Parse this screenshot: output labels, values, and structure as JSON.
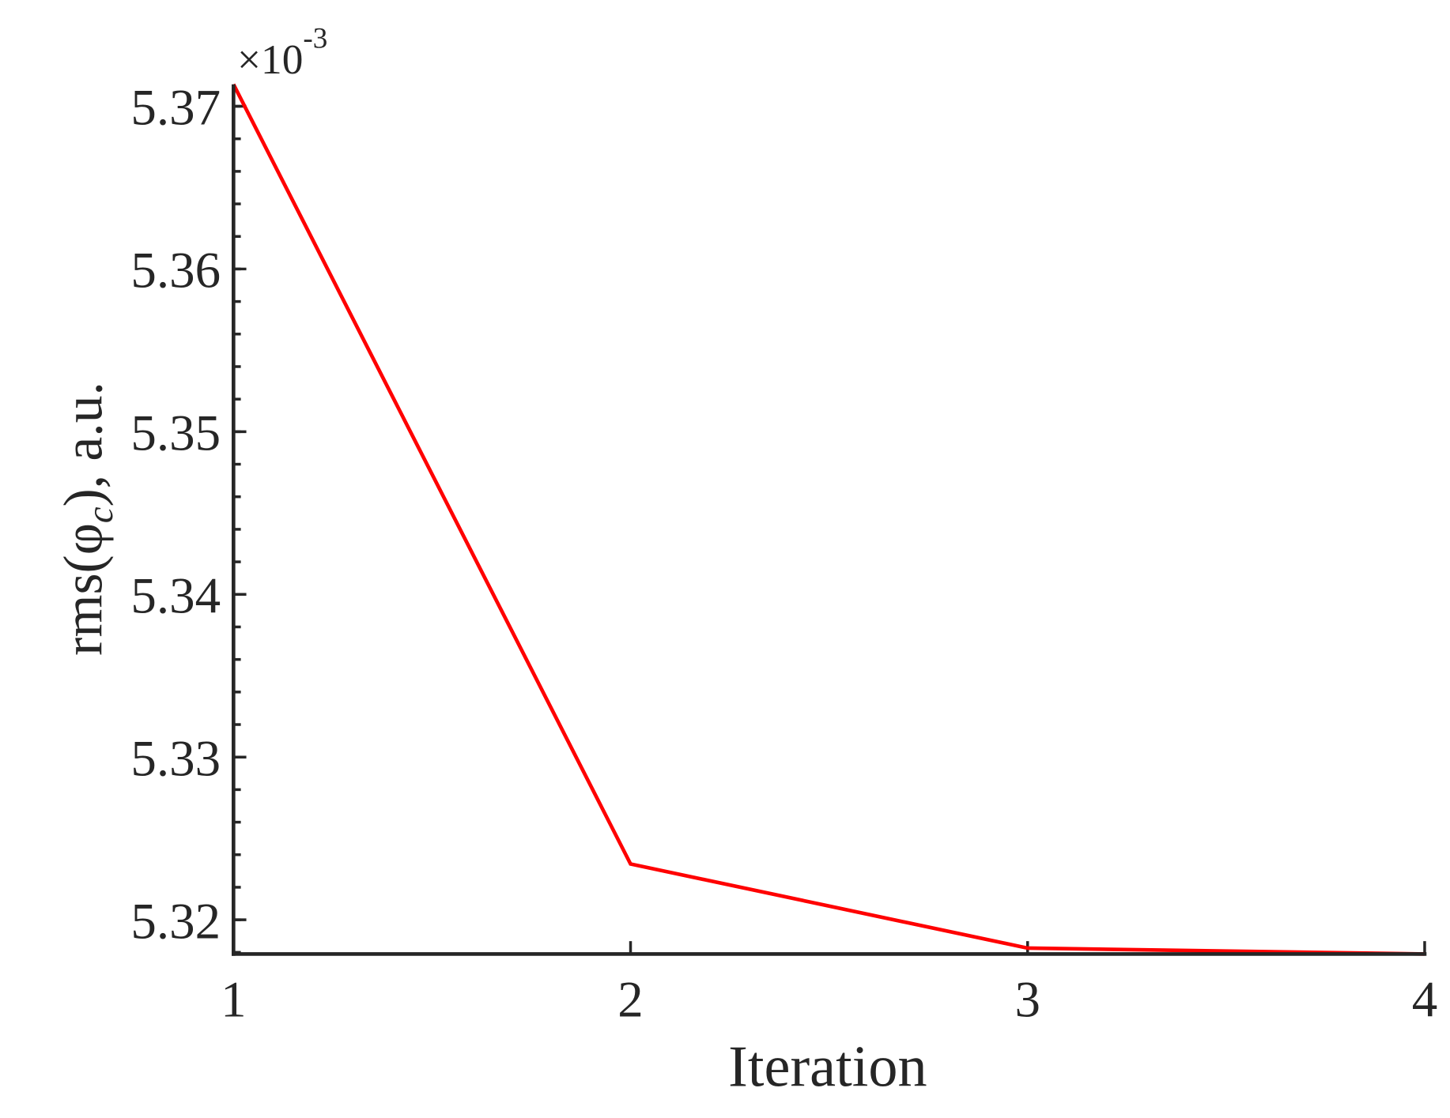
{
  "chart_data": {
    "type": "line",
    "xlabel": "Iteration",
    "ylabel": {
      "text": "rms(φ",
      "subscript": "c",
      "suffix": "), a.u."
    },
    "y_multiplier": {
      "base": "×10",
      "exponent": "-3"
    },
    "x": [
      1,
      2,
      3,
      4
    ],
    "series": [
      {
        "color": "#ff0000",
        "values": [
          5.37135,
          5.32343,
          5.31826,
          5.3179
        ]
      }
    ],
    "xlim": [
      1,
      4
    ],
    "xticks": [
      1,
      2,
      3,
      4
    ],
    "ylim": [
      5.3179,
      5.37135
    ],
    "yticks": [
      5.32,
      5.33,
      5.34,
      5.35,
      5.36,
      5.37
    ],
    "yminor_step": 0.002,
    "grid": false
  }
}
